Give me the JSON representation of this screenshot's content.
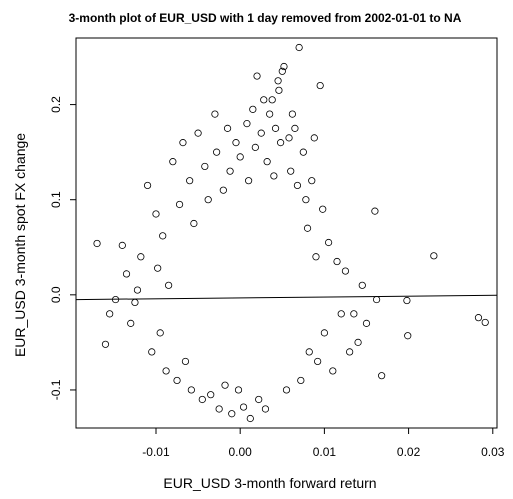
{
  "chart_data": {
    "type": "scatter",
    "title": "3-month plot of EUR_USD with 1 day removed from 2002-01-01 to NA",
    "xlabel": "EUR_USD 3-month forward return",
    "ylabel": "EUR_USD 3-month spot FX change",
    "xlim": [
      -0.0195,
      0.0305
    ],
    "ylim": [
      -0.14,
      0.27
    ],
    "x_ticks": [
      -0.01,
      0.0,
      0.01,
      0.02,
      0.03
    ],
    "x_tick_labels": [
      "-0.01",
      "0.00",
      "0.01",
      "0.02",
      "0.03"
    ],
    "y_ticks": [
      -0.1,
      0.0,
      0.1,
      0.2
    ],
    "y_tick_labels": [
      "-0.1",
      "0.0",
      "0.1",
      "0.2"
    ],
    "grid": false,
    "legend": "none",
    "marker": "open-circle",
    "regression_line": {
      "x": [
        -0.0195,
        0.0305
      ],
      "y": [
        -0.005,
        -0.0005
      ]
    },
    "points": [
      [
        -0.017,
        0.054
      ],
      [
        -0.016,
        -0.052
      ],
      [
        -0.0155,
        -0.02
      ],
      [
        -0.0148,
        -0.005
      ],
      [
        -0.014,
        0.052
      ],
      [
        -0.0135,
        0.022
      ],
      [
        -0.013,
        -0.03
      ],
      [
        -0.0125,
        -0.008
      ],
      [
        -0.0122,
        0.005
      ],
      [
        -0.0118,
        0.04
      ],
      [
        -0.011,
        0.115
      ],
      [
        -0.0105,
        -0.06
      ],
      [
        -0.01,
        0.085
      ],
      [
        -0.0098,
        0.028
      ],
      [
        -0.0095,
        -0.04
      ],
      [
        -0.0092,
        0.062
      ],
      [
        -0.0088,
        -0.08
      ],
      [
        -0.0085,
        0.01
      ],
      [
        -0.008,
        0.14
      ],
      [
        -0.0075,
        -0.09
      ],
      [
        -0.0072,
        0.095
      ],
      [
        -0.0068,
        0.16
      ],
      [
        -0.0065,
        -0.07
      ],
      [
        -0.006,
        0.12
      ],
      [
        -0.0058,
        -0.1
      ],
      [
        -0.0055,
        0.075
      ],
      [
        -0.005,
        0.17
      ],
      [
        -0.0045,
        -0.11
      ],
      [
        -0.0042,
        0.135
      ],
      [
        -0.0038,
        0.1
      ],
      [
        -0.0035,
        -0.105
      ],
      [
        -0.003,
        0.19
      ],
      [
        -0.0028,
        0.15
      ],
      [
        -0.0025,
        -0.12
      ],
      [
        -0.002,
        0.11
      ],
      [
        -0.0018,
        -0.095
      ],
      [
        -0.0015,
        0.175
      ],
      [
        -0.0012,
        0.13
      ],
      [
        -0.001,
        -0.125
      ],
      [
        -0.0005,
        0.16
      ],
      [
        -0.0002,
        -0.1
      ],
      [
        0.0,
        0.145
      ],
      [
        0.0004,
        -0.118
      ],
      [
        0.0008,
        0.18
      ],
      [
        0.001,
        0.12
      ],
      [
        0.0012,
        -0.13
      ],
      [
        0.0015,
        0.195
      ],
      [
        0.0018,
        0.155
      ],
      [
        0.002,
        0.23
      ],
      [
        0.0022,
        -0.11
      ],
      [
        0.0025,
        0.17
      ],
      [
        0.0028,
        0.205
      ],
      [
        0.003,
        -0.12
      ],
      [
        0.0032,
        0.14
      ],
      [
        0.0035,
        0.19
      ],
      [
        0.0038,
        0.205
      ],
      [
        0.004,
        0.125
      ],
      [
        0.0042,
        0.175
      ],
      [
        0.0045,
        0.225
      ],
      [
        0.0046,
        0.215
      ],
      [
        0.0048,
        0.16
      ],
      [
        0.005,
        0.235
      ],
      [
        0.0052,
        0.24
      ],
      [
        0.0055,
        -0.1
      ],
      [
        0.0058,
        0.165
      ],
      [
        0.006,
        0.13
      ],
      [
        0.0062,
        0.19
      ],
      [
        0.0065,
        0.175
      ],
      [
        0.0068,
        0.115
      ],
      [
        0.007,
        0.26
      ],
      [
        0.0072,
        -0.09
      ],
      [
        0.0075,
        0.15
      ],
      [
        0.0078,
        0.1
      ],
      [
        0.008,
        0.07
      ],
      [
        0.0082,
        -0.06
      ],
      [
        0.0085,
        0.12
      ],
      [
        0.0088,
        0.165
      ],
      [
        0.009,
        0.04
      ],
      [
        0.0092,
        -0.07
      ],
      [
        0.0095,
        0.22
      ],
      [
        0.0098,
        0.09
      ],
      [
        0.01,
        -0.04
      ],
      [
        0.0105,
        0.055
      ],
      [
        0.011,
        -0.08
      ],
      [
        0.0115,
        0.035
      ],
      [
        0.012,
        -0.02
      ],
      [
        0.0125,
        0.025
      ],
      [
        0.013,
        -0.06
      ],
      [
        0.0135,
        -0.02
      ],
      [
        0.014,
        -0.05
      ],
      [
        0.0145,
        0.01
      ],
      [
        0.015,
        -0.03
      ],
      [
        0.016,
        0.088
      ],
      [
        0.0162,
        -0.005
      ],
      [
        0.0168,
        -0.085
      ],
      [
        0.0198,
        -0.006
      ],
      [
        0.0199,
        -0.043
      ],
      [
        0.023,
        0.041
      ],
      [
        0.0283,
        -0.024
      ],
      [
        0.0291,
        -0.029
      ]
    ]
  }
}
